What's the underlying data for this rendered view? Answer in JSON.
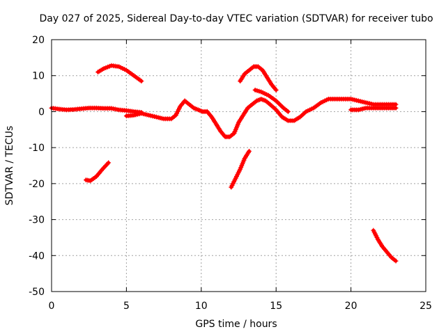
{
  "chart_data": {
    "type": "scatter",
    "title": "Day 027 of 2025, Sidereal Day-to-day VTEC variation (SDTVAR) for receiver tubo",
    "xlabel": "GPS time / hours",
    "ylabel": "SDTVAR / TECUs",
    "xlim": [
      0,
      25
    ],
    "ylim": [
      -50,
      20
    ],
    "xticks": [
      0,
      5,
      10,
      15,
      20,
      25
    ],
    "yticks": [
      -50,
      -40,
      -30,
      -20,
      -10,
      0,
      10,
      20
    ],
    "grid": true,
    "marker": "plus",
    "color": "#ff0000",
    "series": [
      {
        "name": "main-trace-0-3h",
        "x": [
          0,
          0.5,
          1.0,
          1.5,
          2.0,
          2.5,
          3.0,
          3.5,
          4.0,
          4.5,
          5.0,
          5.5,
          6.0
        ],
        "y": [
          1.0,
          0.7,
          0.5,
          0.6,
          0.8,
          1.0,
          1.0,
          0.9,
          0.9,
          0.5,
          0.3,
          0.0,
          -0.2
        ]
      },
      {
        "name": "main-trace-6-9h",
        "x": [
          5.0,
          5.5,
          6.0,
          6.5,
          7.0,
          7.5,
          8.0,
          8.3,
          8.6,
          8.9,
          9.2,
          9.5,
          9.8,
          10.1,
          10.4
        ],
        "y": [
          -1.2,
          -1.0,
          -0.5,
          -1.0,
          -1.5,
          -2.0,
          -2.0,
          -1.0,
          1.5,
          3.0,
          2.0,
          1.0,
          0.5,
          0.0,
          0.0
        ]
      },
      {
        "name": "main-trace-10-13h",
        "x": [
          10.4,
          10.7,
          11.0,
          11.3,
          11.6,
          11.9,
          12.2,
          12.5,
          12.8,
          13.1,
          13.4,
          13.7,
          14.0,
          14.3,
          14.6
        ],
        "y": [
          0.0,
          -1.5,
          -3.5,
          -5.5,
          -7.0,
          -7.0,
          -6.0,
          -3.0,
          -1.0,
          1.0,
          2.0,
          3.0,
          3.5,
          3.0,
          2.0
        ]
      },
      {
        "name": "main-trace-14-23h",
        "x": [
          14.6,
          15.0,
          15.4,
          15.8,
          16.2,
          16.6,
          17.0,
          17.5,
          18.0,
          18.5,
          19.0,
          19.5,
          20.0,
          20.5,
          21.0,
          21.5,
          22.0,
          22.5,
          23.0
        ],
        "y": [
          2.0,
          0.5,
          -1.5,
          -2.5,
          -2.5,
          -1.5,
          0.0,
          1.0,
          2.5,
          3.5,
          3.5,
          3.5,
          3.5,
          3.0,
          2.5,
          2.0,
          2.0,
          2.0,
          2.0
        ]
      },
      {
        "name": "upper-branch-20-23h",
        "x": [
          20.0,
          20.5,
          21.0,
          21.5,
          22.0,
          22.5,
          23.0
        ],
        "y": [
          0.5,
          0.5,
          1.0,
          1.0,
          1.0,
          1.0,
          1.0
        ]
      },
      {
        "name": "arc-3-6h",
        "x": [
          3.1,
          3.5,
          4.0,
          4.5,
          5.0,
          5.5,
          6.0
        ],
        "y": [
          11.0,
          12.0,
          12.8,
          12.5,
          11.5,
          10.0,
          8.5
        ]
      },
      {
        "name": "arc-12-15h",
        "x": [
          12.6,
          12.9,
          13.2,
          13.5,
          13.8,
          14.1,
          14.4,
          14.7,
          15.0
        ],
        "y": [
          8.5,
          10.5,
          11.5,
          12.5,
          12.5,
          11.5,
          9.5,
          7.5,
          6.0
        ]
      },
      {
        "name": "arc-13-16h",
        "x": [
          13.6,
          14.0,
          14.5,
          15.0,
          15.5,
          15.8
        ],
        "y": [
          6.0,
          5.5,
          4.5,
          3.0,
          1.0,
          0.0
        ]
      },
      {
        "name": "segment-2-4h",
        "x": [
          2.3,
          2.6,
          3.0,
          3.4,
          3.8
        ],
        "y": [
          -19.0,
          -19.2,
          -18.0,
          -16.0,
          -14.2
        ]
      },
      {
        "name": "segment-12-13h",
        "x": [
          12.0,
          12.3,
          12.6,
          12.9,
          13.2
        ],
        "y": [
          -21.0,
          -18.5,
          -16.0,
          -13.0,
          -11.0
        ]
      },
      {
        "name": "segment-21-23h",
        "x": [
          21.5,
          21.8,
          22.1,
          22.4,
          22.7,
          23.0
        ],
        "y": [
          -33.0,
          -35.5,
          -37.5,
          -39.0,
          -40.5,
          -41.5
        ]
      }
    ]
  }
}
